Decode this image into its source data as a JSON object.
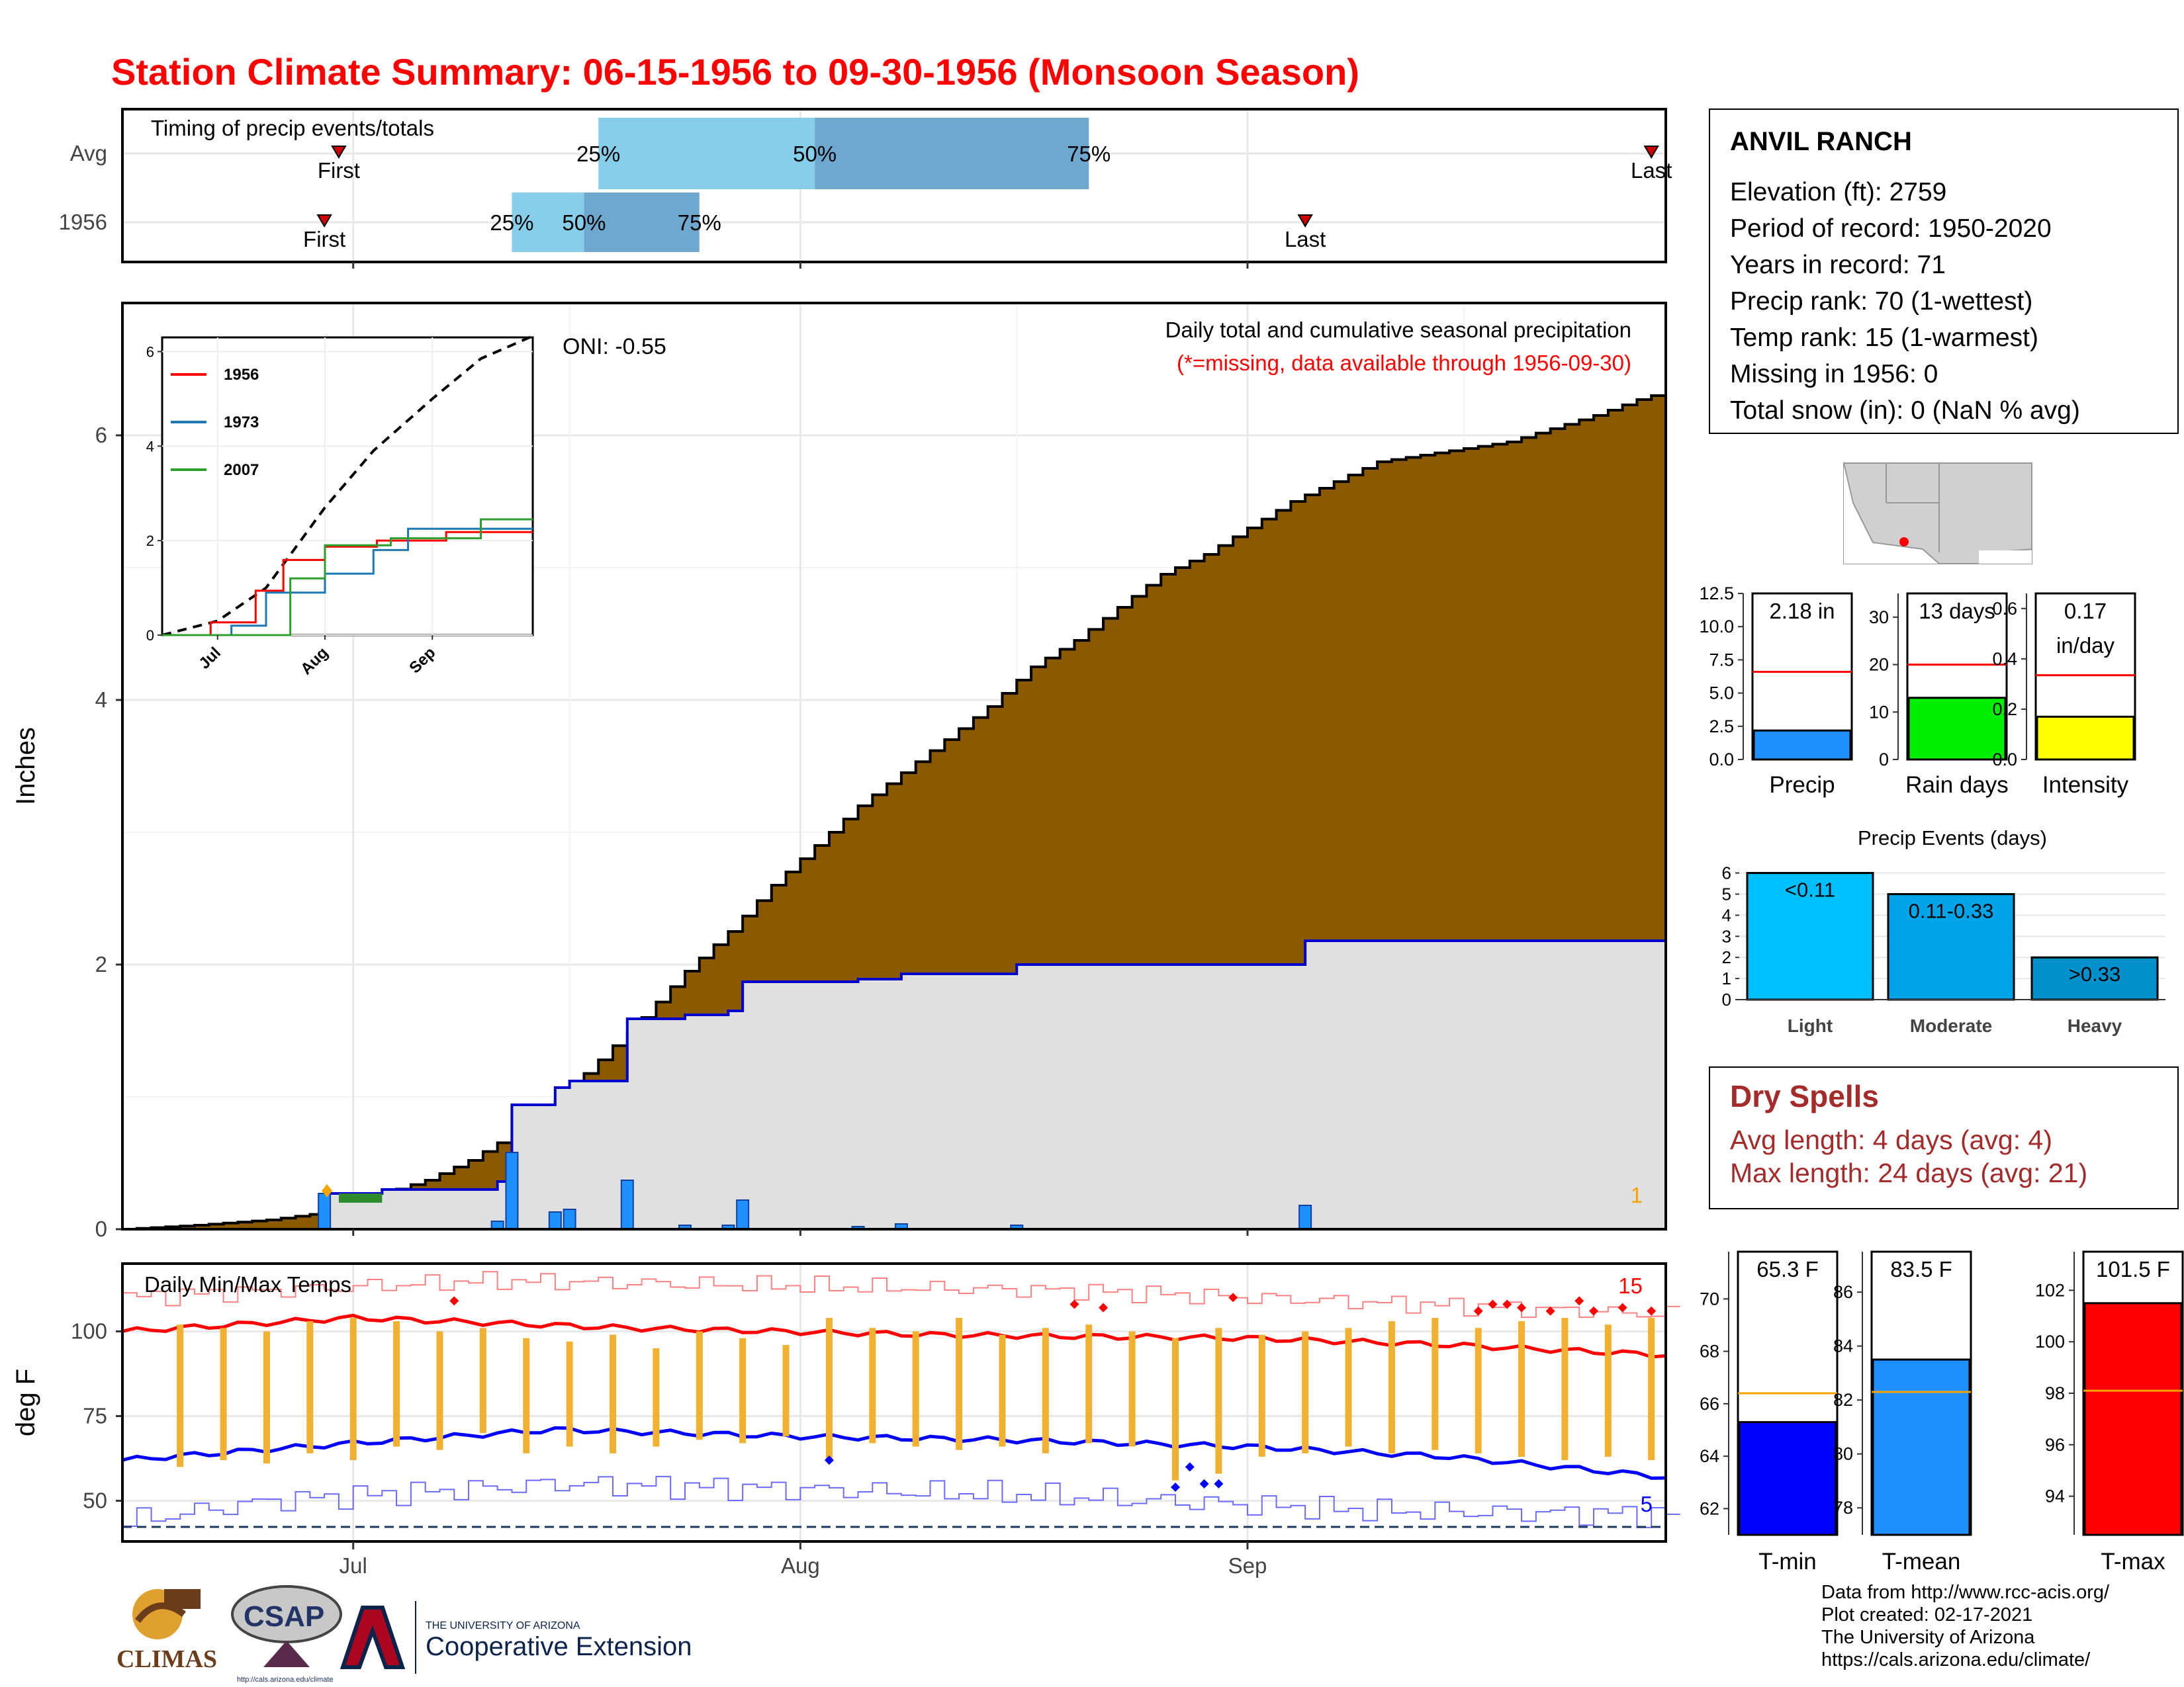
{
  "title": "Station Climate Summary: 06-15-1956 to 09-30-1956 (Monsoon Season)",
  "colors": {
    "title_red": "#ff0000",
    "cumulative_fill": "#8b5a00",
    "avg_fill": "#e0e0e0",
    "avg_line": "#0000cc",
    "daily_bar": "#1e90ff",
    "q_light": "#87ceeb",
    "q_dark": "#6fa8cf",
    "temp_bar": "#f0b030",
    "tmax_line": "#ff0000",
    "tmin_line": "#0000ff",
    "event_light": "#00bfff",
    "event_moderate": "#00a5e8",
    "event_heavy": "#0090cc"
  },
  "month_axis": {
    "labels": [
      "Jul",
      "Aug",
      "Sep"
    ]
  },
  "timing": {
    "title": "Timing of precip events/totals",
    "rows": [
      "Avg",
      "1956"
    ],
    "first_label": "First",
    "last_label": "Last",
    "q_labels": [
      "25%",
      "50%",
      "75%"
    ],
    "avg": {
      "first": "2024-06-30",
      "last": "2024-09-29",
      "q25": "2024-07-18",
      "q50": "2024-08-02",
      "q75": "2024-08-21"
    },
    "y1956": {
      "first": "2024-06-29",
      "last": "2024-09-05",
      "q25": "2024-07-12",
      "q50": "2024-07-17",
      "q75": "2024-07-25"
    }
  },
  "precip": {
    "ylabel": "Inches",
    "title": "Daily total and cumulative seasonal precipitation",
    "subtitle": "(*=missing, data available through 1956-09-30)",
    "oni": "ONI: -0.55",
    "corner_count": "1",
    "ylim": [
      0,
      7
    ],
    "yticks": [
      0,
      2,
      4,
      6
    ],
    "cumulative_avg": [
      {
        "x": "2024-06-15",
        "y": 0.0
      },
      {
        "x": "2024-06-20",
        "y": 0.03
      },
      {
        "x": "2024-06-25",
        "y": 0.07
      },
      {
        "x": "2024-06-30",
        "y": 0.14
      },
      {
        "x": "2024-07-03",
        "y": 0.27
      },
      {
        "x": "2024-07-06",
        "y": 0.37
      },
      {
        "x": "2024-07-09",
        "y": 0.52
      },
      {
        "x": "2024-07-12",
        "y": 0.72
      },
      {
        "x": "2024-07-15",
        "y": 0.97
      },
      {
        "x": "2024-07-18",
        "y": 1.28
      },
      {
        "x": "2024-07-21",
        "y": 1.6
      },
      {
        "x": "2024-07-24",
        "y": 1.95
      },
      {
        "x": "2024-07-27",
        "y": 2.25
      },
      {
        "x": "2024-07-30",
        "y": 2.6
      },
      {
        "x": "2024-08-02",
        "y": 2.9
      },
      {
        "x": "2024-08-05",
        "y": 3.2
      },
      {
        "x": "2024-08-08",
        "y": 3.45
      },
      {
        "x": "2024-08-11",
        "y": 3.7
      },
      {
        "x": "2024-08-14",
        "y": 3.95
      },
      {
        "x": "2024-08-17",
        "y": 4.25
      },
      {
        "x": "2024-08-20",
        "y": 4.45
      },
      {
        "x": "2024-08-23",
        "y": 4.7
      },
      {
        "x": "2024-08-26",
        "y": 4.95
      },
      {
        "x": "2024-08-29",
        "y": 5.1
      },
      {
        "x": "2024-09-01",
        "y": 5.3
      },
      {
        "x": "2024-09-04",
        "y": 5.5
      },
      {
        "x": "2024-09-07",
        "y": 5.65
      },
      {
        "x": "2024-09-10",
        "y": 5.8
      },
      {
        "x": "2024-09-13",
        "y": 5.85
      },
      {
        "x": "2024-09-16",
        "y": 5.9
      },
      {
        "x": "2024-09-19",
        "y": 5.95
      },
      {
        "x": "2024-09-22",
        "y": 6.05
      },
      {
        "x": "2024-09-25",
        "y": 6.15
      },
      {
        "x": "2024-09-28",
        "y": 6.27
      },
      {
        "x": "2024-09-30",
        "y": 6.33
      }
    ],
    "cumulative_1956": [
      {
        "x": "2024-06-15",
        "y": 0.0
      },
      {
        "x": "2024-06-29",
        "y": 0.27
      },
      {
        "x": "2024-07-01",
        "y": 0.27
      },
      {
        "x": "2024-07-03",
        "y": 0.3
      },
      {
        "x": "2024-07-11",
        "y": 0.36
      },
      {
        "x": "2024-07-12",
        "y": 0.94
      },
      {
        "x": "2024-07-15",
        "y": 1.07
      },
      {
        "x": "2024-07-16",
        "y": 1.12
      },
      {
        "x": "2024-07-20",
        "y": 1.59
      },
      {
        "x": "2024-07-24",
        "y": 1.62
      },
      {
        "x": "2024-07-27",
        "y": 1.65
      },
      {
        "x": "2024-07-28",
        "y": 1.87
      },
      {
        "x": "2024-08-05",
        "y": 1.89
      },
      {
        "x": "2024-08-08",
        "y": 1.93
      },
      {
        "x": "2024-08-16",
        "y": 2.0
      },
      {
        "x": "2024-09-05",
        "y": 2.18
      },
      {
        "x": "2024-09-30",
        "y": 2.18
      }
    ],
    "daily_1956": [
      {
        "x": "2024-06-29",
        "y": 0.27
      },
      {
        "x": "2024-07-11",
        "y": 0.06
      },
      {
        "x": "2024-07-12",
        "y": 0.58
      },
      {
        "x": "2024-07-15",
        "y": 0.13
      },
      {
        "x": "2024-07-16",
        "y": 0.15
      },
      {
        "x": "2024-07-20",
        "y": 0.37
      },
      {
        "x": "2024-07-24",
        "y": 0.03
      },
      {
        "x": "2024-07-27",
        "y": 0.03
      },
      {
        "x": "2024-07-28",
        "y": 0.22
      },
      {
        "x": "2024-08-05",
        "y": 0.02
      },
      {
        "x": "2024-08-08",
        "y": 0.04
      },
      {
        "x": "2024-08-16",
        "y": 0.03
      },
      {
        "x": "2024-09-05",
        "y": 0.18
      }
    ],
    "inset": {
      "ylim": [
        0,
        6.3
      ],
      "yticks": [
        "0",
        "2",
        "4",
        "6"
      ],
      "legend": [
        {
          "name": "1956",
          "color": "#ff0000"
        },
        {
          "name": "1973",
          "color": "#1f77b4"
        },
        {
          "name": "2007",
          "color": "#2ca02c"
        }
      ],
      "avg_dashed": [
        {
          "x": "2024-06-15",
          "y": 0.0
        },
        {
          "x": "2024-07-01",
          "y": 0.3
        },
        {
          "x": "2024-07-15",
          "y": 1.0
        },
        {
          "x": "2024-08-01",
          "y": 2.7
        },
        {
          "x": "2024-08-15",
          "y": 3.9
        },
        {
          "x": "2024-09-01",
          "y": 5.0
        },
        {
          "x": "2024-09-15",
          "y": 5.85
        },
        {
          "x": "2024-09-30",
          "y": 6.33
        }
      ],
      "series": {
        "1956": [
          {
            "x": "2024-06-15",
            "y": 0
          },
          {
            "x": "2024-06-29",
            "y": 0.27
          },
          {
            "x": "2024-07-12",
            "y": 0.94
          },
          {
            "x": "2024-07-20",
            "y": 1.59
          },
          {
            "x": "2024-08-01",
            "y": 1.87
          },
          {
            "x": "2024-08-16",
            "y": 2.0
          },
          {
            "x": "2024-09-05",
            "y": 2.18
          },
          {
            "x": "2024-09-30",
            "y": 2.18
          }
        ],
        "1973": [
          {
            "x": "2024-06-15",
            "y": 0
          },
          {
            "x": "2024-07-05",
            "y": 0.2
          },
          {
            "x": "2024-07-15",
            "y": 0.9
          },
          {
            "x": "2024-08-01",
            "y": 1.3
          },
          {
            "x": "2024-08-15",
            "y": 1.8
          },
          {
            "x": "2024-08-25",
            "y": 2.25
          },
          {
            "x": "2024-09-30",
            "y": 2.25
          }
        ],
        "2007": [
          {
            "x": "2024-06-15",
            "y": 0
          },
          {
            "x": "2024-07-20",
            "y": 0
          },
          {
            "x": "2024-07-22",
            "y": 1.2
          },
          {
            "x": "2024-08-01",
            "y": 1.9
          },
          {
            "x": "2024-08-20",
            "y": 2.05
          },
          {
            "x": "2024-09-15",
            "y": 2.45
          },
          {
            "x": "2024-09-30",
            "y": 2.45
          }
        ]
      }
    }
  },
  "temps": {
    "ylabel": "deg F",
    "label": "Daily Min/Max Temps",
    "count_max": "15",
    "count_min": "5",
    "ylim": [
      38,
      120
    ],
    "yticks": [
      50,
      75,
      100
    ],
    "avg_tmax": [
      {
        "x": "2024-06-15",
        "y": 100
      },
      {
        "x": "2024-07-01",
        "y": 104
      },
      {
        "x": "2024-07-20",
        "y": 101
      },
      {
        "x": "2024-08-10",
        "y": 99
      },
      {
        "x": "2024-09-01",
        "y": 98
      },
      {
        "x": "2024-09-15",
        "y": 96
      },
      {
        "x": "2024-09-30",
        "y": 93
      }
    ],
    "avg_tmin": [
      {
        "x": "2024-06-15",
        "y": 62
      },
      {
        "x": "2024-07-01",
        "y": 67
      },
      {
        "x": "2024-07-15",
        "y": 71
      },
      {
        "x": "2024-08-01",
        "y": 69
      },
      {
        "x": "2024-08-15",
        "y": 68
      },
      {
        "x": "2024-09-01",
        "y": 66
      },
      {
        "x": "2024-09-15",
        "y": 63
      },
      {
        "x": "2024-09-30",
        "y": 57
      }
    ],
    "record_tmax": [
      {
        "x": "2024-06-15",
        "y": 110
      },
      {
        "x": "2024-07-10",
        "y": 115
      },
      {
        "x": "2024-08-20",
        "y": 112
      },
      {
        "x": "2024-09-30",
        "y": 105
      }
    ],
    "record_tmin": [
      {
        "x": "2024-06-15",
        "y": 44
      },
      {
        "x": "2024-06-25",
        "y": 50
      },
      {
        "x": "2024-07-15",
        "y": 55
      },
      {
        "x": "2024-08-15",
        "y": 52
      },
      {
        "x": "2024-09-10",
        "y": 47
      },
      {
        "x": "2024-09-30",
        "y": 46
      }
    ],
    "daily": [
      {
        "x": "2024-06-19",
        "lo": 60,
        "hi": 102
      },
      {
        "x": "2024-06-22",
        "lo": 62,
        "hi": 101
      },
      {
        "x": "2024-06-25",
        "lo": 61,
        "hi": 100
      },
      {
        "x": "2024-06-28",
        "lo": 64,
        "hi": 103
      },
      {
        "x": "2024-07-01",
        "lo": 62,
        "hi": 104
      },
      {
        "x": "2024-07-04",
        "lo": 66,
        "hi": 103
      },
      {
        "x": "2024-07-07",
        "lo": 65,
        "hi": 100
      },
      {
        "x": "2024-07-10",
        "lo": 70,
        "hi": 101
      },
      {
        "x": "2024-07-13",
        "lo": 64,
        "hi": 98
      },
      {
        "x": "2024-07-16",
        "lo": 66,
        "hi": 97
      },
      {
        "x": "2024-07-19",
        "lo": 64,
        "hi": 99
      },
      {
        "x": "2024-07-22",
        "lo": 66,
        "hi": 95
      },
      {
        "x": "2024-07-25",
        "lo": 68,
        "hi": 100
      },
      {
        "x": "2024-07-28",
        "lo": 67,
        "hi": 98
      },
      {
        "x": "2024-07-31",
        "lo": 69,
        "hi": 96
      },
      {
        "x": "2024-08-03",
        "lo": 62,
        "hi": 104
      },
      {
        "x": "2024-08-06",
        "lo": 67,
        "hi": 101
      },
      {
        "x": "2024-08-09",
        "lo": 66,
        "hi": 100
      },
      {
        "x": "2024-08-12",
        "lo": 65,
        "hi": 104
      },
      {
        "x": "2024-08-15",
        "lo": 66,
        "hi": 99
      },
      {
        "x": "2024-08-18",
        "lo": 64,
        "hi": 101
      },
      {
        "x": "2024-08-21",
        "lo": 67,
        "hi": 102
      },
      {
        "x": "2024-08-24",
        "lo": 66,
        "hi": 100
      },
      {
        "x": "2024-08-27",
        "lo": 56,
        "hi": 98
      },
      {
        "x": "2024-08-30",
        "lo": 58,
        "hi": 101
      },
      {
        "x": "2024-09-02",
        "lo": 63,
        "hi": 99
      },
      {
        "x": "2024-09-05",
        "lo": 64,
        "hi": 100
      },
      {
        "x": "2024-09-08",
        "lo": 66,
        "hi": 101
      },
      {
        "x": "2024-09-11",
        "lo": 64,
        "hi": 103
      },
      {
        "x": "2024-09-14",
        "lo": 65,
        "hi": 104
      },
      {
        "x": "2024-09-17",
        "lo": 64,
        "hi": 101
      },
      {
        "x": "2024-09-20",
        "lo": 63,
        "hi": 103
      },
      {
        "x": "2024-09-23",
        "lo": 62,
        "hi": 104
      },
      {
        "x": "2024-09-26",
        "lo": 63,
        "hi": 102
      },
      {
        "x": "2024-09-29",
        "lo": 62,
        "hi": 104
      }
    ],
    "record_high_marks": [
      {
        "x": "2024-07-08",
        "y": 109
      },
      {
        "x": "2024-08-20",
        "y": 108
      },
      {
        "x": "2024-08-22",
        "y": 107
      },
      {
        "x": "2024-08-31",
        "y": 110
      },
      {
        "x": "2024-09-17",
        "y": 106
      },
      {
        "x": "2024-09-18",
        "y": 108
      },
      {
        "x": "2024-09-19",
        "y": 108
      },
      {
        "x": "2024-09-20",
        "y": 107
      },
      {
        "x": "2024-09-22",
        "y": 106
      },
      {
        "x": "2024-09-24",
        "y": 109
      },
      {
        "x": "2024-09-25",
        "y": 106
      },
      {
        "x": "2024-09-27",
        "y": 107
      },
      {
        "x": "2024-09-29",
        "y": 106
      }
    ],
    "record_low_marks": [
      {
        "x": "2024-08-03",
        "y": 62
      },
      {
        "x": "2024-08-27",
        "y": 54
      },
      {
        "x": "2024-08-28",
        "y": 60
      },
      {
        "x": "2024-08-29",
        "y": 55
      },
      {
        "x": "2024-08-30",
        "y": 55
      }
    ]
  },
  "station": {
    "name": "ANVIL RANCH",
    "lines": [
      "Elevation (ft): 2759",
      "Period of record: 1950-2020",
      "Years in record: 71",
      "Precip rank: 70 (1-wettest)",
      "Temp rank: 15 (1-warmest)",
      "Missing in 1956: 0",
      "Total snow (in): 0 (NaN % avg)"
    ]
  },
  "mini_bars": [
    {
      "xlabel": "Precip",
      "value": 2.18,
      "avg": 6.6,
      "ymax": 12.5,
      "yticks": [
        "0.0",
        "2.5",
        "5.0",
        "7.5",
        "10.0",
        "12.5"
      ],
      "tickvals": [
        0,
        2.5,
        5,
        7.5,
        10,
        12.5
      ],
      "label": "2.18 in",
      "color": "#1e90ff"
    },
    {
      "xlabel": "Rain days",
      "value": 13,
      "avg": 20,
      "ymax": 35,
      "yticks": [
        "0",
        "10",
        "20",
        "30"
      ],
      "tickvals": [
        0,
        10,
        20,
        30
      ],
      "label": "13 days",
      "color": "#00ee00"
    },
    {
      "xlabel": "Intensity",
      "value": 0.17,
      "avg": 0.335,
      "ymax": 0.66,
      "yticks": [
        "0.0",
        "0.2",
        "0.4",
        "0.6"
      ],
      "tickvals": [
        0,
        0.2,
        0.4,
        0.6
      ],
      "label": "0.17",
      "label2": "in/day",
      "color": "#ffff00"
    }
  ],
  "precip_events": {
    "title": "Precip Events (days)",
    "yticks": [
      "0",
      "1",
      "2",
      "3",
      "4",
      "5",
      "6"
    ],
    "categories": [
      "Light",
      "Moderate",
      "Heavy"
    ],
    "bar_labels": [
      "<0.11",
      "0.11-0.33",
      ">0.33"
    ],
    "values": [
      6,
      5,
      2
    ],
    "ymax": 6.3
  },
  "dry_spells": {
    "title": "Dry Spells",
    "avg_length": "Avg length: 4 days (avg: 4)",
    "max_length": "Max length: 24 days (avg: 21)"
  },
  "temp_bars": [
    {
      "xlabel": "T-min",
      "value": 65.3,
      "avg": 66.4,
      "ymin": 61,
      "ymax": 71.8,
      "tickvals": [
        62,
        64,
        66,
        68,
        70
      ],
      "yticks": [
        "62",
        "64",
        "66",
        "68",
        "70"
      ],
      "label": "65.3 F",
      "color": "#0000ff"
    },
    {
      "xlabel": "T-mean",
      "value": 83.5,
      "avg": 82.3,
      "ymin": 77,
      "ymax": 87.5,
      "tickvals": [
        78,
        80,
        82,
        84,
        86
      ],
      "yticks": [
        "78",
        "80",
        "82",
        "84",
        "86"
      ],
      "label": "83.5 F",
      "color": "#1e90ff"
    },
    {
      "xlabel": "T-max",
      "value": 101.5,
      "avg": 98.1,
      "ymin": 92.5,
      "ymax": 103.5,
      "tickvals": [
        94,
        96,
        98,
        100,
        102
      ],
      "yticks": [
        "94",
        "96",
        "98",
        "100",
        "102"
      ],
      "label": "101.5 F",
      "color": "#ff0000"
    }
  ],
  "credits": [
    "Data from http://www.rcc-acis.org/",
    "Plot created: 02-17-2021",
    "The University of Arizona",
    "https://cals.arizona.edu/climate/"
  ],
  "logos": {
    "climas": "CLIMAS",
    "csap": "CSAP",
    "csap_url": "http://cals.arizona.edu/climate",
    "ua_small": "THE UNIVERSITY OF ARIZONA",
    "ua_big": "Cooperative Extension"
  }
}
